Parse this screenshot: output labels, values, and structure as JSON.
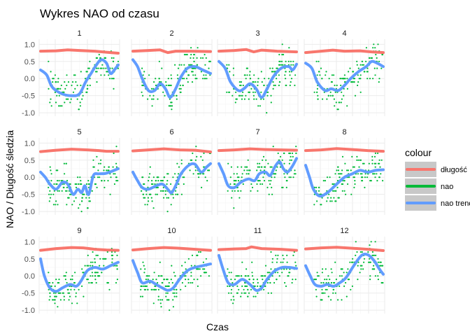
{
  "chart_data": {
    "type": "line",
    "title": "Wykres NAO od czasu",
    "xlabel": "Czas",
    "ylabel": "NAO / Długość śledzia",
    "ylim": [
      -1.1,
      1.15
    ],
    "y_ticks": [
      1.0,
      0.5,
      0.0,
      -0.5,
      -1.0
    ],
    "y_tick_labels": [
      "1.0",
      "0.5",
      "0.0",
      "-0.5",
      "-1.0"
    ],
    "x_axis": "continuous time index (normalized 0–1 within each panel), no tick labels",
    "facet_layout": "4 columns x 3 rows",
    "grid": true,
    "legend": {
      "title": "colour",
      "position": "right",
      "entries": [
        {
          "name": "długość",
          "color": "#F8766D"
        },
        {
          "name": "nao",
          "color": "#00BA38"
        },
        {
          "name": "nao trend",
          "color": "#619CFF"
        }
      ]
    },
    "colors": {
      "dlugosc": "#F8766D",
      "nao": "#00BA38",
      "nao_trend": "#619CFF"
    },
    "panels": [
      {
        "label": "1",
        "dlugosc": [
          [
            0,
            0.8
          ],
          [
            0.2,
            0.81
          ],
          [
            0.35,
            0.84
          ],
          [
            0.5,
            0.82
          ],
          [
            0.7,
            0.8
          ],
          [
            0.85,
            0.77
          ],
          [
            1,
            0.74
          ]
        ],
        "nao_trend": [
          [
            0,
            0.25
          ],
          [
            0.08,
            0.1
          ],
          [
            0.15,
            -0.25
          ],
          [
            0.28,
            -0.45
          ],
          [
            0.4,
            -0.5
          ],
          [
            0.5,
            -0.45
          ],
          [
            0.58,
            -0.1
          ],
          [
            0.65,
            0.15
          ],
          [
            0.72,
            0.4
          ],
          [
            0.78,
            0.55
          ],
          [
            0.85,
            0.45
          ],
          [
            0.9,
            0.15
          ],
          [
            0.95,
            0.25
          ],
          [
            1,
            0.4
          ]
        ]
      },
      {
        "label": "2",
        "dlugosc": [
          [
            0,
            0.8
          ],
          [
            0.2,
            0.82
          ],
          [
            0.35,
            0.84
          ],
          [
            0.45,
            0.76
          ],
          [
            0.55,
            0.8
          ],
          [
            0.75,
            0.8
          ],
          [
            1,
            0.79
          ]
        ],
        "nao_trend": [
          [
            0,
            0.55
          ],
          [
            0.06,
            0.35
          ],
          [
            0.12,
            0.0
          ],
          [
            0.2,
            -0.35
          ],
          [
            0.28,
            -0.35
          ],
          [
            0.35,
            -0.15
          ],
          [
            0.42,
            -0.3
          ],
          [
            0.48,
            -0.55
          ],
          [
            0.55,
            -0.3
          ],
          [
            0.62,
            0.05
          ],
          [
            0.7,
            0.3
          ],
          [
            0.8,
            0.35
          ],
          [
            0.9,
            0.25
          ],
          [
            1,
            0.15
          ]
        ]
      },
      {
        "label": "3",
        "dlugosc": [
          [
            0,
            0.8
          ],
          [
            0.2,
            0.82
          ],
          [
            0.35,
            0.85
          ],
          [
            0.45,
            0.78
          ],
          [
            0.55,
            0.83
          ],
          [
            0.75,
            0.8
          ],
          [
            1,
            0.78
          ]
        ],
        "nao_trend": [
          [
            0,
            0.5
          ],
          [
            0.08,
            0.3
          ],
          [
            0.15,
            -0.1
          ],
          [
            0.25,
            -0.35
          ],
          [
            0.32,
            -0.3
          ],
          [
            0.4,
            -0.15
          ],
          [
            0.48,
            -0.3
          ],
          [
            0.55,
            -0.55
          ],
          [
            0.62,
            -0.3
          ],
          [
            0.7,
            0.05
          ],
          [
            0.8,
            0.3
          ],
          [
            0.9,
            0.35
          ],
          [
            0.95,
            0.25
          ],
          [
            1,
            0.42
          ]
        ]
      },
      {
        "label": "4",
        "dlugosc": [
          [
            0,
            0.76
          ],
          [
            0.2,
            0.8
          ],
          [
            0.35,
            0.83
          ],
          [
            0.5,
            0.8
          ],
          [
            0.7,
            0.81
          ],
          [
            0.85,
            0.78
          ],
          [
            1,
            0.76
          ]
        ],
        "nao_trend": [
          [
            0,
            0.45
          ],
          [
            0.08,
            0.3
          ],
          [
            0.15,
            -0.1
          ],
          [
            0.25,
            -0.35
          ],
          [
            0.33,
            -0.3
          ],
          [
            0.42,
            -0.35
          ],
          [
            0.5,
            -0.2
          ],
          [
            0.58,
            0.0
          ],
          [
            0.68,
            0.2
          ],
          [
            0.78,
            0.35
          ],
          [
            0.85,
            0.5
          ],
          [
            0.92,
            0.45
          ],
          [
            1,
            0.35
          ]
        ]
      },
      {
        "label": "5",
        "dlugosc": [
          [
            0,
            0.75
          ],
          [
            0.2,
            0.79
          ],
          [
            0.4,
            0.82
          ],
          [
            0.6,
            0.8
          ],
          [
            0.75,
            0.78
          ],
          [
            0.85,
            0.76
          ],
          [
            1,
            0.76
          ]
        ],
        "nao_trend": [
          [
            0,
            0.15
          ],
          [
            0.06,
            0.0
          ],
          [
            0.12,
            -0.2
          ],
          [
            0.2,
            -0.35
          ],
          [
            0.28,
            -0.15
          ],
          [
            0.35,
            -0.2
          ],
          [
            0.42,
            -0.5
          ],
          [
            0.48,
            -0.35
          ],
          [
            0.53,
            -0.45
          ],
          [
            0.57,
            -0.25
          ],
          [
            0.62,
            -0.5
          ],
          [
            0.68,
            0.05
          ],
          [
            0.75,
            0.1
          ],
          [
            0.85,
            0.12
          ],
          [
            1,
            0.25
          ]
        ]
      },
      {
        "label": "6",
        "dlugosc": [
          [
            0,
            0.77
          ],
          [
            0.2,
            0.8
          ],
          [
            0.4,
            0.83
          ],
          [
            0.6,
            0.8
          ],
          [
            0.8,
            0.79
          ],
          [
            1,
            0.74
          ]
        ],
        "nao_trend": [
          [
            0,
            0.15
          ],
          [
            0.06,
            -0.1
          ],
          [
            0.12,
            -0.3
          ],
          [
            0.2,
            -0.35
          ],
          [
            0.3,
            -0.25
          ],
          [
            0.38,
            -0.2
          ],
          [
            0.45,
            -0.35
          ],
          [
            0.5,
            -0.45
          ],
          [
            0.56,
            -0.2
          ],
          [
            0.62,
            0.1
          ],
          [
            0.72,
            0.35
          ],
          [
            0.8,
            0.38
          ],
          [
            0.88,
            0.15
          ],
          [
            0.95,
            0.3
          ],
          [
            1,
            0.4
          ]
        ]
      },
      {
        "label": "7",
        "dlugosc": [
          [
            0,
            0.78
          ],
          [
            0.2,
            0.8
          ],
          [
            0.4,
            0.83
          ],
          [
            0.6,
            0.81
          ],
          [
            0.8,
            0.8
          ],
          [
            1,
            0.79
          ]
        ],
        "nao_trend": [
          [
            0,
            0.4
          ],
          [
            0.06,
            0.1
          ],
          [
            0.12,
            -0.25
          ],
          [
            0.2,
            -0.3
          ],
          [
            0.28,
            -0.15
          ],
          [
            0.38,
            -0.05
          ],
          [
            0.46,
            -0.1
          ],
          [
            0.52,
            0.1
          ],
          [
            0.6,
            0.15
          ],
          [
            0.66,
            0.05
          ],
          [
            0.72,
            0.3
          ],
          [
            0.78,
            0.45
          ],
          [
            0.83,
            0.25
          ],
          [
            0.88,
            0.15
          ],
          [
            0.94,
            0.3
          ],
          [
            1,
            0.55
          ]
        ]
      },
      {
        "label": "8",
        "dlugosc": [
          [
            0,
            0.78
          ],
          [
            0.2,
            0.8
          ],
          [
            0.4,
            0.84
          ],
          [
            0.6,
            0.81
          ],
          [
            0.8,
            0.78
          ],
          [
            1,
            0.76
          ]
        ],
        "nao_trend": [
          [
            0,
            0.35
          ],
          [
            0.05,
            0.0
          ],
          [
            0.1,
            -0.35
          ],
          [
            0.18,
            -0.55
          ],
          [
            0.28,
            -0.45
          ],
          [
            0.4,
            -0.2
          ],
          [
            0.5,
            0.0
          ],
          [
            0.6,
            0.1
          ],
          [
            0.7,
            0.2
          ],
          [
            0.8,
            0.15
          ],
          [
            0.9,
            0.2
          ],
          [
            1,
            0.22
          ]
        ]
      },
      {
        "label": "9",
        "dlugosc": [
          [
            0,
            0.75
          ],
          [
            0.2,
            0.8
          ],
          [
            0.4,
            0.83
          ],
          [
            0.55,
            0.82
          ],
          [
            0.7,
            0.78
          ],
          [
            0.85,
            0.76
          ],
          [
            1,
            0.75
          ]
        ],
        "nao_trend": [
          [
            0,
            0.5
          ],
          [
            0.05,
            0.0
          ],
          [
            0.12,
            -0.35
          ],
          [
            0.2,
            -0.45
          ],
          [
            0.28,
            -0.35
          ],
          [
            0.38,
            -0.25
          ],
          [
            0.46,
            -0.3
          ],
          [
            0.52,
            -0.15
          ],
          [
            0.6,
            0.15
          ],
          [
            0.7,
            0.25
          ],
          [
            0.8,
            0.2
          ],
          [
            0.9,
            0.3
          ],
          [
            1,
            0.4
          ]
        ]
      },
      {
        "label": "10",
        "dlugosc": [
          [
            0,
            0.76
          ],
          [
            0.2,
            0.8
          ],
          [
            0.4,
            0.83
          ],
          [
            0.6,
            0.81
          ],
          [
            0.8,
            0.78
          ],
          [
            1,
            0.75
          ]
        ],
        "nao_trend": [
          [
            0,
            0.45
          ],
          [
            0.06,
            0.1
          ],
          [
            0.12,
            -0.2
          ],
          [
            0.22,
            -0.15
          ],
          [
            0.3,
            -0.25
          ],
          [
            0.38,
            -0.35
          ],
          [
            0.45,
            -0.42
          ],
          [
            0.52,
            -0.35
          ],
          [
            0.6,
            -0.1
          ],
          [
            0.7,
            0.15
          ],
          [
            0.8,
            0.25
          ],
          [
            0.9,
            0.3
          ],
          [
            1,
            0.35
          ]
        ]
      },
      {
        "label": "11",
        "dlugosc": [
          [
            0,
            0.77
          ],
          [
            0.2,
            0.79
          ],
          [
            0.35,
            0.8
          ],
          [
            0.42,
            0.85
          ],
          [
            0.55,
            0.8
          ],
          [
            0.8,
            0.78
          ],
          [
            1,
            0.75
          ]
        ],
        "nao_trend": [
          [
            0,
            0.6
          ],
          [
            0.06,
            0.15
          ],
          [
            0.12,
            -0.2
          ],
          [
            0.2,
            -0.25
          ],
          [
            0.3,
            -0.1
          ],
          [
            0.4,
            -0.25
          ],
          [
            0.48,
            -0.42
          ],
          [
            0.55,
            -0.35
          ],
          [
            0.62,
            -0.1
          ],
          [
            0.72,
            0.15
          ],
          [
            0.82,
            0.25
          ],
          [
            0.9,
            0.25
          ],
          [
            1,
            0.22
          ]
        ]
      },
      {
        "label": "12",
        "dlugosc": [
          [
            0,
            0.79
          ],
          [
            0.2,
            0.82
          ],
          [
            0.4,
            0.84
          ],
          [
            0.6,
            0.81
          ],
          [
            0.8,
            0.78
          ],
          [
            1,
            0.74
          ]
        ],
        "nao_trend": [
          [
            0,
            0.3
          ],
          [
            0.06,
            0.0
          ],
          [
            0.12,
            -0.25
          ],
          [
            0.2,
            -0.3
          ],
          [
            0.28,
            -0.25
          ],
          [
            0.36,
            -0.3
          ],
          [
            0.44,
            -0.2
          ],
          [
            0.52,
            -0.05
          ],
          [
            0.62,
            0.3
          ],
          [
            0.72,
            0.6
          ],
          [
            0.8,
            0.62
          ],
          [
            0.88,
            0.45
          ],
          [
            0.95,
            0.2
          ],
          [
            1,
            0.05
          ]
        ]
      }
    ]
  }
}
